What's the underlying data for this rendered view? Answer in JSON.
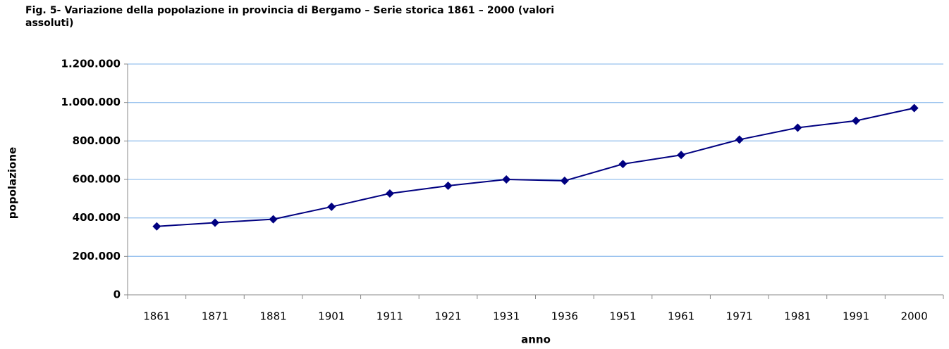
{
  "chart_data": {
    "type": "line",
    "title": "Fig. 5- Variazione della popolazione in provincia di Bergamo – Serie storica 1861 – 2000 (valori assoluti)",
    "x_label": "anno",
    "y_label": "popolazione",
    "categories": [
      "1861",
      "1871",
      "1881",
      "1901",
      "1911",
      "1921",
      "1931",
      "1936",
      "1951",
      "1961",
      "1971",
      "1981",
      "1991",
      "2000"
    ],
    "values": [
      356000,
      375000,
      393000,
      458000,
      527000,
      567000,
      600000,
      593000,
      680000,
      727000,
      807000,
      869000,
      905000,
      971000
    ],
    "color": "#000080",
    "ylim": [
      0,
      1200000
    ],
    "yticks": [
      0,
      {
        "value": 200000,
        "label": "200.000"
      },
      {
        "value": 400000,
        "label": "400.000"
      },
      {
        "value": 600000,
        "label": "600.000"
      },
      {
        "value": 800000,
        "label": "800.000"
      },
      {
        "value": 1000000,
        "label": "1.000.000"
      },
      {
        "value": 1200000,
        "label": "1.200.000"
      }
    ],
    "grid": true
  }
}
